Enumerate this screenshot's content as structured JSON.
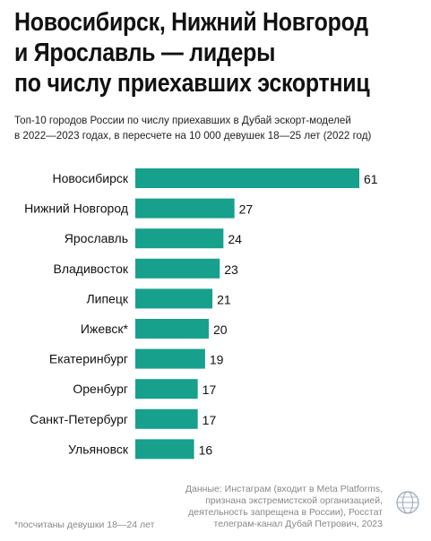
{
  "header": {
    "title_lines": [
      "Новосибирск, Нижний Новгород",
      "и Ярославль — лидеры",
      "по числу приехавших эскортниц"
    ],
    "subtitle_lines": [
      "Топ-10 городов России по числу приехавших в Дубай эскорт-моделей",
      "в 2022—2023 годах, в пересчете на 10 000 девушек 18—25 лет (2022 год)"
    ]
  },
  "chart_data": {
    "type": "bar",
    "orientation": "horizontal",
    "categories": [
      "Новосибирск",
      "Нижний Новгород",
      "Ярославль",
      "Владивосток",
      "Липецк",
      "Ижевск*",
      "Екатеринбург",
      "Оренбург",
      "Санкт-Петербург",
      "Ульяновск"
    ],
    "values": [
      61,
      27,
      24,
      23,
      21,
      20,
      19,
      17,
      17,
      16
    ],
    "bar_color": "#17a08c",
    "xlim": [
      0,
      61
    ]
  },
  "footer": {
    "source_lines": [
      "Данные: Инстаграм (входит в Meta Platforms,",
      "признана экстремистской организацией,",
      "деятельность запрещена в России), Росстат",
      "телеграм-канал Дубай Петрович, 2023"
    ],
    "footnote": "*посчитаны девушки 18—24 лет",
    "logo_icon": "globe-emblem-icon"
  }
}
